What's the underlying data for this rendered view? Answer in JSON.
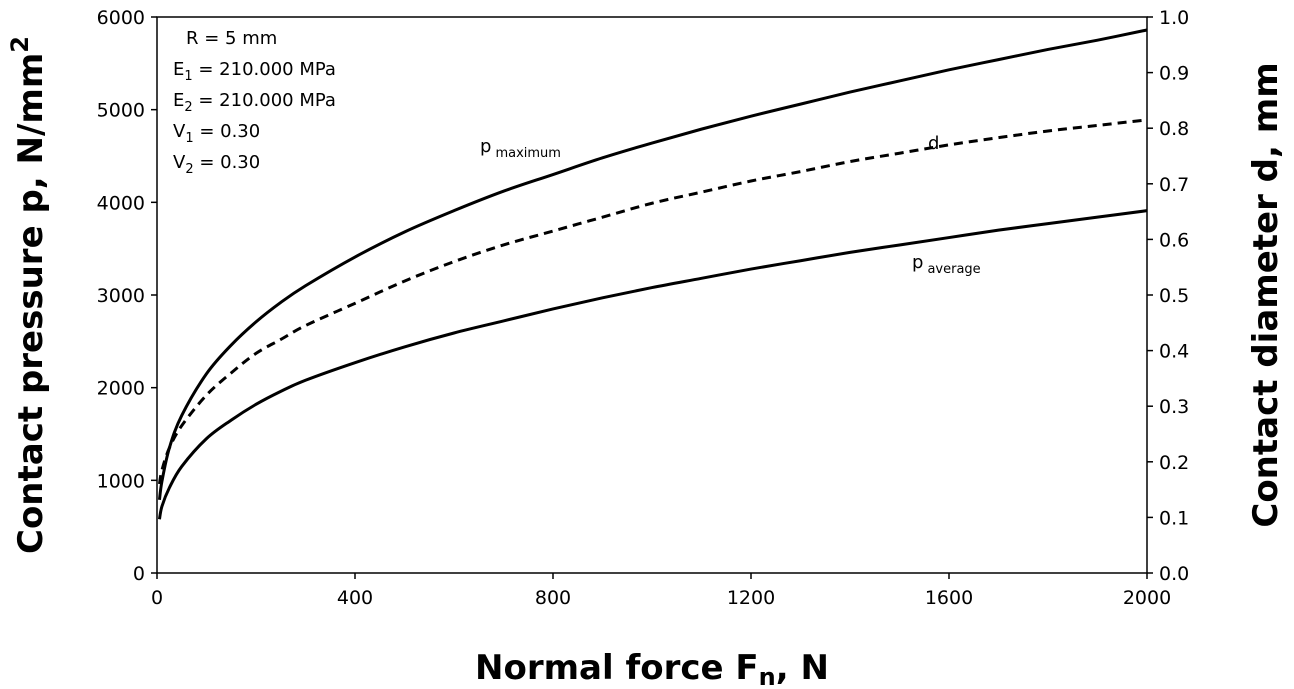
{
  "chart_data": {
    "type": "line",
    "title": "",
    "xlabel": {
      "main": "Normal force F",
      "sub": "n",
      "tail": ", N"
    },
    "ylabel_left": {
      "main": "Contact pressure p, N/mm",
      "sup": "2"
    },
    "ylabel_right": "Contact diameter d, mm",
    "xlim": [
      0,
      2000
    ],
    "ylim_left": [
      0,
      6000
    ],
    "ylim_right": [
      0,
      1.0
    ],
    "x_ticks": [
      "0",
      "400",
      "800",
      "1200",
      "1600",
      "2000"
    ],
    "y_left_ticks": [
      "0",
      "1000",
      "2000",
      "3000",
      "4000",
      "5000",
      "6000"
    ],
    "y_right_ticks": [
      "0.0",
      "0.1",
      "0.2",
      "0.3",
      "0.4",
      "0.5",
      "0.6",
      "0.7",
      "0.8",
      "0.9",
      "1.0"
    ],
    "grid": false,
    "x": [
      5,
      10,
      25,
      50,
      100,
      150,
      200,
      250,
      300,
      400,
      500,
      600,
      700,
      800,
      900,
      1000,
      1100,
      1200,
      1300,
      1400,
      1500,
      1600,
      1700,
      1800,
      1900,
      2000
    ],
    "series": [
      {
        "label": {
          "main": "p",
          "sub": "maximum"
        },
        "axis": "left",
        "style": "solid",
        "values": [
          790,
          990,
          1350,
          1700,
          2150,
          2460,
          2710,
          2920,
          3100,
          3410,
          3680,
          3910,
          4120,
          4300,
          4480,
          4640,
          4790,
          4930,
          5060,
          5190,
          5310,
          5430,
          5540,
          5650,
          5750,
          5860
        ]
      },
      {
        "label": {
          "main": "d",
          "sub": ""
        },
        "axis": "right",
        "style": "dashed",
        "values": [
          0.16,
          0.185,
          0.225,
          0.265,
          0.32,
          0.36,
          0.395,
          0.42,
          0.445,
          0.485,
          0.525,
          0.56,
          0.59,
          0.615,
          0.64,
          0.665,
          0.685,
          0.705,
          0.722,
          0.74,
          0.755,
          0.77,
          0.783,
          0.795,
          0.805,
          0.815
        ]
      },
      {
        "label": {
          "main": "p",
          "sub": "average"
        },
        "axis": "left",
        "style": "solid",
        "values": [
          580,
          720,
          920,
          1150,
          1450,
          1650,
          1820,
          1960,
          2080,
          2270,
          2440,
          2590,
          2720,
          2850,
          2970,
          3080,
          3180,
          3280,
          3370,
          3460,
          3540,
          3620,
          3700,
          3770,
          3840,
          3910
        ]
      }
    ],
    "annotations": [
      {
        "main": "R = 5 mm",
        "sub": "",
        "tail": ""
      },
      {
        "main": "E",
        "sub": "1",
        "tail": " = 210.000 MPa"
      },
      {
        "main": "E",
        "sub": "2",
        "tail": " = 210.000 MPa"
      },
      {
        "main": "V",
        "sub": "1",
        "tail": " = 0.30"
      },
      {
        "main": "V",
        "sub": "2",
        "tail": " = 0.30"
      }
    ]
  }
}
